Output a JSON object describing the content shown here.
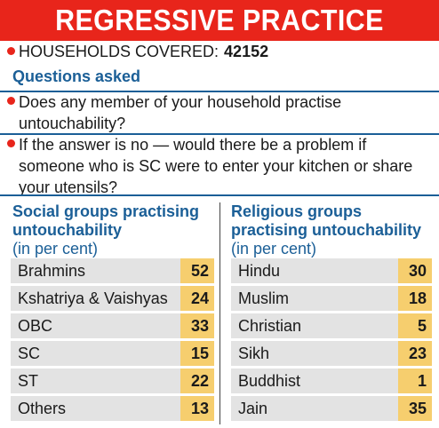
{
  "banner": {
    "title": "REGRESSIVE PRACTICE"
  },
  "households": {
    "label": "HOUSEHOLDS COVERED:",
    "value": "42152"
  },
  "questions": {
    "heading": "Questions asked",
    "items": [
      "Does any member of your household practise untouchability?",
      "If the answer is no — would there be a problem if someone who is SC were to enter your kitchen or share your utensils?"
    ]
  },
  "colors": {
    "accent": "#e8251b",
    "heading": "#1b5f97",
    "value_fill": "#f6ce6e",
    "row_fill": "#e3e3e3"
  },
  "chart_data": [
    {
      "type": "table",
      "title": "Social groups practising untouchability",
      "unit": "(in per cent)",
      "categories": [
        "Brahmins",
        "Kshatriya & Vaishyas",
        "OBC",
        "SC",
        "ST",
        "Others"
      ],
      "values": [
        52,
        24,
        33,
        15,
        22,
        13
      ]
    },
    {
      "type": "table",
      "title": "Religious groups practising untouchability",
      "unit": "(in per cent)",
      "categories": [
        "Hindu",
        "Muslim",
        "Christian",
        "Sikh",
        "Buddhist",
        "Jain"
      ],
      "values": [
        30,
        18,
        5,
        23,
        1,
        35
      ]
    }
  ]
}
